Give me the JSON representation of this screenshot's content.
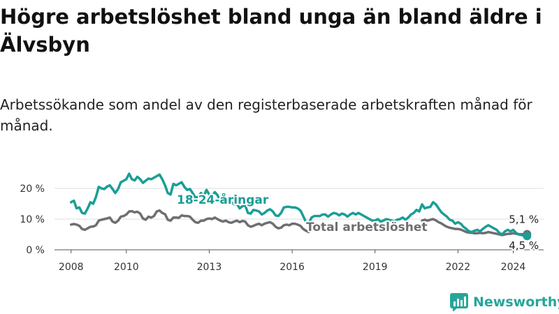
{
  "title": "Högre arbetslöshet bland unga än bland äldre i Älvsbyn",
  "subtitle": "Arbetssökande som andel av den registerbaserade arbetskraften månad för månad.",
  "brand": {
    "name": "Newsworthy",
    "color": "#26a69a"
  },
  "chart_data": {
    "type": "line",
    "xlabel": "",
    "ylabel": "",
    "xlim": [
      2007.4,
      2025.1
    ],
    "ylim": [
      0,
      25
    ],
    "x_ticks": [
      2008,
      2010,
      2013,
      2016,
      2019,
      2022,
      2024
    ],
    "y_ticks": [
      {
        "value": 0,
        "label": "0 %"
      },
      {
        "value": 10,
        "label": "10 %"
      },
      {
        "value": 20,
        "label": "20 %"
      }
    ],
    "grid": "horizontal",
    "legend": "inline",
    "series": [
      {
        "name": "18-24-åringar",
        "color": "#1a9e95",
        "end_label": "4,5 %",
        "points": [
          [
            2008.0,
            15.5
          ],
          [
            2008.1,
            16.0
          ],
          [
            2008.2,
            13.5
          ],
          [
            2008.3,
            13.8
          ],
          [
            2008.4,
            12.0
          ],
          [
            2008.5,
            11.8
          ],
          [
            2008.6,
            13.5
          ],
          [
            2008.7,
            15.5
          ],
          [
            2008.8,
            15.0
          ],
          [
            2008.9,
            17.2
          ],
          [
            2009.0,
            20.5
          ],
          [
            2009.1,
            20.0
          ],
          [
            2009.2,
            19.8
          ],
          [
            2009.3,
            20.6
          ],
          [
            2009.4,
            21.0
          ],
          [
            2009.5,
            19.8
          ],
          [
            2009.6,
            18.5
          ],
          [
            2009.7,
            19.8
          ],
          [
            2009.8,
            22.0
          ],
          [
            2009.9,
            22.5
          ],
          [
            2010.0,
            23.0
          ],
          [
            2010.1,
            24.8
          ],
          [
            2010.2,
            23.0
          ],
          [
            2010.3,
            22.6
          ],
          [
            2010.4,
            23.8
          ],
          [
            2010.5,
            23.0
          ],
          [
            2010.6,
            21.8
          ],
          [
            2010.7,
            22.5
          ],
          [
            2010.8,
            23.2
          ],
          [
            2010.9,
            23.0
          ],
          [
            2011.0,
            23.5
          ],
          [
            2011.1,
            24.0
          ],
          [
            2011.2,
            24.5
          ],
          [
            2011.3,
            23.0
          ],
          [
            2011.4,
            21.0
          ],
          [
            2011.5,
            18.5
          ],
          [
            2011.6,
            18.0
          ],
          [
            2011.7,
            21.5
          ],
          [
            2011.8,
            21.0
          ],
          [
            2011.9,
            21.5
          ],
          [
            2012.0,
            22.0
          ],
          [
            2012.1,
            20.5
          ],
          [
            2012.2,
            19.5
          ],
          [
            2012.3,
            19.8
          ],
          [
            2012.4,
            18.5
          ],
          [
            2012.5,
            17.0
          ],
          [
            2012.6,
            17.2
          ],
          [
            2012.7,
            18.5
          ],
          [
            2012.8,
            17.5
          ],
          [
            2012.9,
            19.5
          ],
          [
            2013.0,
            18.0
          ],
          [
            2013.1,
            17.5
          ],
          [
            2013.2,
            18.8
          ],
          [
            2013.3,
            17.8
          ],
          [
            2013.4,
            15.8
          ],
          [
            2013.5,
            16.2
          ],
          [
            2013.6,
            17.0
          ],
          [
            2013.7,
            16.0
          ],
          [
            2013.8,
            15.5
          ],
          [
            2013.9,
            14.8
          ],
          [
            2014.0,
            15.0
          ],
          [
            2014.1,
            13.5
          ],
          [
            2014.2,
            14.2
          ],
          [
            2014.3,
            14.5
          ],
          [
            2014.4,
            12.0
          ],
          [
            2014.5,
            11.8
          ],
          [
            2014.6,
            13.0
          ],
          [
            2014.7,
            12.8
          ],
          [
            2014.8,
            12.5
          ],
          [
            2014.9,
            11.5
          ],
          [
            2015.0,
            12.0
          ],
          [
            2015.1,
            12.8
          ],
          [
            2015.2,
            13.2
          ],
          [
            2015.3,
            12.5
          ],
          [
            2015.4,
            11.2
          ],
          [
            2015.5,
            11.0
          ],
          [
            2015.6,
            12.0
          ],
          [
            2015.7,
            13.8
          ],
          [
            2015.8,
            14.0
          ],
          [
            2015.9,
            14.0
          ],
          [
            2016.0,
            13.8
          ],
          [
            2016.1,
            13.8
          ],
          [
            2016.2,
            13.5
          ],
          [
            2016.3,
            12.8
          ],
          [
            2016.4,
            11.0
          ],
          [
            2016.5,
            9.0
          ],
          [
            2016.6,
            8.5
          ],
          [
            2016.7,
            10.5
          ],
          [
            2016.8,
            11.0
          ],
          [
            2016.9,
            11.0
          ],
          [
            2017.0,
            11.0
          ],
          [
            2017.1,
            11.5
          ],
          [
            2017.2,
            11.5
          ],
          [
            2017.3,
            10.8
          ],
          [
            2017.4,
            11.5
          ],
          [
            2017.5,
            12.0
          ],
          [
            2017.6,
            11.8
          ],
          [
            2017.7,
            11.2
          ],
          [
            2017.8,
            11.8
          ],
          [
            2017.9,
            11.5
          ],
          [
            2018.0,
            10.8
          ],
          [
            2018.1,
            11.5
          ],
          [
            2018.2,
            12.0
          ],
          [
            2018.3,
            11.5
          ],
          [
            2018.4,
            12.0
          ],
          [
            2018.5,
            11.5
          ],
          [
            2018.6,
            11.0
          ],
          [
            2018.7,
            10.5
          ],
          [
            2018.8,
            10.0
          ],
          [
            2018.9,
            9.5
          ],
          [
            2019.0,
            9.5
          ],
          [
            2019.1,
            10.0
          ],
          [
            2019.2,
            9.2
          ],
          [
            2019.3,
            9.5
          ],
          [
            2019.4,
            10.0
          ],
          [
            2019.5,
            9.8
          ],
          [
            2019.6,
            9.5
          ],
          [
            2019.7,
            9.2
          ],
          [
            2019.8,
            9.8
          ],
          [
            2019.9,
            10.0
          ],
          [
            2020.0,
            10.5
          ],
          [
            2020.1,
            9.8
          ],
          [
            2020.2,
            10.5
          ],
          [
            2020.3,
            11.5
          ],
          [
            2020.4,
            12.0
          ],
          [
            2020.5,
            13.0
          ],
          [
            2020.6,
            12.5
          ],
          [
            2020.7,
            14.8
          ],
          [
            2020.8,
            13.5
          ],
          [
            2020.9,
            13.8
          ],
          [
            2021.0,
            14.0
          ],
          [
            2021.1,
            15.5
          ],
          [
            2021.2,
            14.8
          ],
          [
            2021.3,
            13.5
          ],
          [
            2021.4,
            12.2
          ],
          [
            2021.5,
            11.5
          ],
          [
            2021.6,
            10.8
          ],
          [
            2021.7,
            9.8
          ],
          [
            2021.8,
            9.5
          ],
          [
            2021.9,
            8.5
          ],
          [
            2022.0,
            9.0
          ],
          [
            2022.1,
            8.5
          ],
          [
            2022.2,
            7.5
          ],
          [
            2022.3,
            6.8
          ],
          [
            2022.4,
            6.0
          ],
          [
            2022.5,
            5.8
          ],
          [
            2022.6,
            6.2
          ],
          [
            2022.7,
            6.5
          ],
          [
            2022.8,
            6.0
          ],
          [
            2022.9,
            6.8
          ],
          [
            2023.0,
            7.5
          ],
          [
            2023.1,
            8.0
          ],
          [
            2023.2,
            7.5
          ],
          [
            2023.3,
            7.0
          ],
          [
            2023.4,
            6.5
          ],
          [
            2023.5,
            5.5
          ],
          [
            2023.6,
            5.0
          ],
          [
            2023.7,
            6.0
          ],
          [
            2023.8,
            6.5
          ],
          [
            2023.9,
            6.0
          ],
          [
            2024.0,
            6.5
          ],
          [
            2024.1,
            5.5
          ],
          [
            2024.2,
            5.0
          ],
          [
            2024.3,
            4.8
          ],
          [
            2024.4,
            4.6
          ],
          [
            2024.5,
            4.5
          ]
        ]
      },
      {
        "name": "Total arbetslöshet",
        "color": "#6e6e73",
        "end_label": "5,1 %",
        "points": [
          [
            2008.0,
            8.2
          ],
          [
            2008.1,
            8.4
          ],
          [
            2008.2,
            8.2
          ],
          [
            2008.3,
            7.8
          ],
          [
            2008.4,
            6.8
          ],
          [
            2008.5,
            6.5
          ],
          [
            2008.6,
            7.0
          ],
          [
            2008.7,
            7.5
          ],
          [
            2008.8,
            7.6
          ],
          [
            2008.9,
            8.0
          ],
          [
            2009.0,
            9.5
          ],
          [
            2009.1,
            9.8
          ],
          [
            2009.2,
            10.0
          ],
          [
            2009.3,
            10.2
          ],
          [
            2009.4,
            10.5
          ],
          [
            2009.5,
            9.2
          ],
          [
            2009.6,
            8.8
          ],
          [
            2009.7,
            9.5
          ],
          [
            2009.8,
            10.8
          ],
          [
            2009.9,
            11.0
          ],
          [
            2010.0,
            11.5
          ],
          [
            2010.1,
            12.5
          ],
          [
            2010.2,
            12.6
          ],
          [
            2010.3,
            12.2
          ],
          [
            2010.4,
            12.4
          ],
          [
            2010.5,
            11.8
          ],
          [
            2010.6,
            10.2
          ],
          [
            2010.7,
            9.8
          ],
          [
            2010.8,
            10.8
          ],
          [
            2010.9,
            10.5
          ],
          [
            2011.0,
            11.0
          ],
          [
            2011.1,
            12.5
          ],
          [
            2011.2,
            12.8
          ],
          [
            2011.3,
            12.0
          ],
          [
            2011.4,
            11.6
          ],
          [
            2011.5,
            9.8
          ],
          [
            2011.6,
            9.5
          ],
          [
            2011.7,
            10.5
          ],
          [
            2011.8,
            10.5
          ],
          [
            2011.9,
            10.4
          ],
          [
            2012.0,
            11.2
          ],
          [
            2012.1,
            11.0
          ],
          [
            2012.2,
            11.0
          ],
          [
            2012.3,
            10.8
          ],
          [
            2012.4,
            9.8
          ],
          [
            2012.5,
            9.0
          ],
          [
            2012.6,
            8.8
          ],
          [
            2012.7,
            9.5
          ],
          [
            2012.8,
            9.5
          ],
          [
            2012.9,
            10.0
          ],
          [
            2013.0,
            10.2
          ],
          [
            2013.1,
            10.0
          ],
          [
            2013.2,
            10.5
          ],
          [
            2013.3,
            10.0
          ],
          [
            2013.4,
            9.5
          ],
          [
            2013.5,
            9.2
          ],
          [
            2013.6,
            9.5
          ],
          [
            2013.7,
            9.0
          ],
          [
            2013.8,
            8.8
          ],
          [
            2013.9,
            9.2
          ],
          [
            2014.0,
            9.5
          ],
          [
            2014.1,
            9.0
          ],
          [
            2014.2,
            9.4
          ],
          [
            2014.3,
            9.2
          ],
          [
            2014.4,
            8.0
          ],
          [
            2014.5,
            7.5
          ],
          [
            2014.6,
            7.8
          ],
          [
            2014.7,
            8.2
          ],
          [
            2014.8,
            8.5
          ],
          [
            2014.9,
            8.0
          ],
          [
            2015.0,
            8.5
          ],
          [
            2015.1,
            8.8
          ],
          [
            2015.2,
            9.0
          ],
          [
            2015.3,
            8.5
          ],
          [
            2015.4,
            7.5
          ],
          [
            2015.5,
            7.0
          ],
          [
            2015.6,
            7.2
          ],
          [
            2015.7,
            8.0
          ],
          [
            2015.8,
            8.2
          ],
          [
            2015.9,
            8.0
          ],
          [
            2016.0,
            8.5
          ],
          [
            2016.1,
            8.5
          ],
          [
            2016.2,
            8.2
          ],
          [
            2016.3,
            7.8
          ],
          [
            2016.4,
            6.8
          ],
          [
            2016.5,
            6.2
          ],
          [
            2016.6,
            5.8
          ],
          [
            2020.7,
            9.5
          ],
          [
            2020.8,
            9.8
          ],
          [
            2020.9,
            9.5
          ],
          [
            2021.0,
            9.8
          ],
          [
            2021.1,
            10.0
          ],
          [
            2021.2,
            9.6
          ],
          [
            2021.3,
            9.0
          ],
          [
            2021.4,
            8.6
          ],
          [
            2021.5,
            8.0
          ],
          [
            2021.6,
            7.5
          ],
          [
            2021.7,
            7.2
          ],
          [
            2021.8,
            7.0
          ],
          [
            2021.9,
            6.8
          ],
          [
            2022.0,
            6.8
          ],
          [
            2022.1,
            6.6
          ],
          [
            2022.2,
            6.2
          ],
          [
            2022.3,
            5.8
          ],
          [
            2022.4,
            5.6
          ],
          [
            2022.5,
            5.5
          ],
          [
            2022.6,
            5.4
          ],
          [
            2022.7,
            5.4
          ],
          [
            2022.8,
            5.5
          ],
          [
            2022.9,
            5.4
          ],
          [
            2023.0,
            5.5
          ],
          [
            2023.1,
            5.8
          ],
          [
            2023.2,
            5.6
          ],
          [
            2023.3,
            5.4
          ],
          [
            2023.4,
            5.2
          ],
          [
            2023.5,
            5.0
          ],
          [
            2023.6,
            4.8
          ],
          [
            2023.7,
            5.0
          ],
          [
            2023.8,
            5.2
          ],
          [
            2023.9,
            5.2
          ],
          [
            2024.0,
            5.4
          ],
          [
            2024.1,
            5.2
          ],
          [
            2024.2,
            5.1
          ],
          [
            2024.3,
            5.1
          ],
          [
            2024.4,
            5.0
          ],
          [
            2024.5,
            5.1
          ]
        ]
      }
    ]
  }
}
